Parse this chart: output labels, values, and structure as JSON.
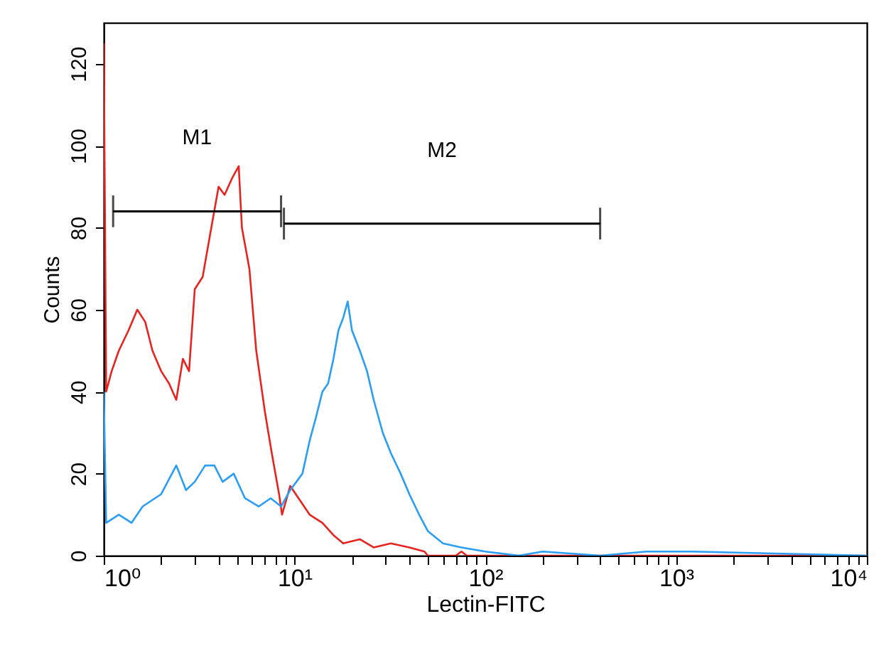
{
  "chart_data": {
    "type": "line",
    "xlabel": "Lectin-FITC",
    "ylabel": "Counts",
    "log": "x",
    "xlim": [
      1,
      10000
    ],
    "ylim": [
      0,
      130
    ],
    "xticks": [
      {
        "value": 1,
        "label": "10⁰"
      },
      {
        "value": 2,
        "label": null
      },
      {
        "value": 3,
        "label": null
      },
      {
        "value": 4,
        "label": null
      },
      {
        "value": 5,
        "label": null
      },
      {
        "value": 6,
        "label": null
      },
      {
        "value": 7,
        "label": null
      },
      {
        "value": 8,
        "label": null
      },
      {
        "value": 9,
        "label": null
      },
      {
        "value": 10,
        "label": "10¹"
      },
      {
        "value": 20,
        "label": null
      },
      {
        "value": 30,
        "label": null
      },
      {
        "value": 40,
        "label": null
      },
      {
        "value": 50,
        "label": null
      },
      {
        "value": 60,
        "label": null
      },
      {
        "value": 70,
        "label": null
      },
      {
        "value": 80,
        "label": null
      },
      {
        "value": 90,
        "label": null
      },
      {
        "value": 100,
        "label": "10²"
      },
      {
        "value": 200,
        "label": null
      },
      {
        "value": 300,
        "label": null
      },
      {
        "value": 400,
        "label": null
      },
      {
        "value": 500,
        "label": null
      },
      {
        "value": 600,
        "label": null
      },
      {
        "value": 700,
        "label": null
      },
      {
        "value": 800,
        "label": null
      },
      {
        "value": 900,
        "label": null
      },
      {
        "value": 1000,
        "label": "10³"
      },
      {
        "value": 2000,
        "label": null
      },
      {
        "value": 3000,
        "label": null
      },
      {
        "value": 4000,
        "label": null
      },
      {
        "value": 5000,
        "label": null
      },
      {
        "value": 6000,
        "label": null
      },
      {
        "value": 7000,
        "label": null
      },
      {
        "value": 8000,
        "label": null
      },
      {
        "value": 9000,
        "label": null
      },
      {
        "value": 10000,
        "label": "10⁴"
      }
    ],
    "yticks": [
      0,
      20,
      40,
      60,
      80,
      100,
      120
    ],
    "grid": false,
    "marker": "none",
    "line_style": "solid",
    "series": [
      {
        "color": "#e8231f",
        "x": [
          1.0,
          1.03,
          1.1,
          1.2,
          1.35,
          1.5,
          1.65,
          1.8,
          2.0,
          2.2,
          2.4,
          2.6,
          2.8,
          3.0,
          3.3,
          3.6,
          4.0,
          4.3,
          4.7,
          5.1,
          5.3,
          5.8,
          6.3,
          7,
          7.6,
          8.3,
          8.6,
          9.5,
          10.5,
          12,
          14,
          16,
          18,
          22,
          26,
          32,
          40,
          48,
          50,
          70,
          75,
          80,
          1000,
          10000
        ],
        "values": [
          125,
          40,
          45,
          50,
          55,
          60,
          57,
          50,
          45,
          42,
          38,
          48,
          45,
          65,
          68,
          78,
          90,
          88,
          92,
          95,
          80,
          70,
          50,
          35,
          25,
          15,
          10,
          17,
          14,
          10,
          8,
          5,
          3,
          4,
          2,
          3,
          2,
          1,
          0,
          0,
          1,
          0,
          0,
          0
        ]
      },
      {
        "color": "#2a9df4",
        "x": [
          1.0,
          1.03,
          1.2,
          1.4,
          1.6,
          2.0,
          2.4,
          2.7,
          3.0,
          3.4,
          3.8,
          4.2,
          4.8,
          5.5,
          6.5,
          7.5,
          8.5,
          9.5,
          11,
          12,
          13,
          14,
          15,
          16,
          17,
          18,
          19,
          20,
          22,
          24,
          26,
          29,
          32,
          36,
          40,
          45,
          50,
          60,
          75,
          100,
          150,
          200,
          400,
          700,
          1200,
          10000
        ],
        "values": [
          40,
          8,
          10,
          8,
          12,
          15,
          22,
          16,
          18,
          22,
          22,
          18,
          20,
          14,
          12,
          14,
          12,
          16,
          20,
          28,
          34,
          40,
          42,
          48,
          55,
          58,
          62,
          55,
          50,
          45,
          38,
          30,
          25,
          20,
          15,
          10,
          6,
          3,
          2,
          1,
          0,
          1,
          0,
          1,
          1,
          0
        ]
      },
      {
        "name": "M1",
        "color": "#000000",
        "x": [
          1.12,
          8.5
        ],
        "values": [
          84,
          84
        ]
      },
      {
        "name": "M2",
        "color": "#000000",
        "x": [
          8.8,
          400
        ],
        "values": [
          81,
          81
        ]
      }
    ]
  }
}
